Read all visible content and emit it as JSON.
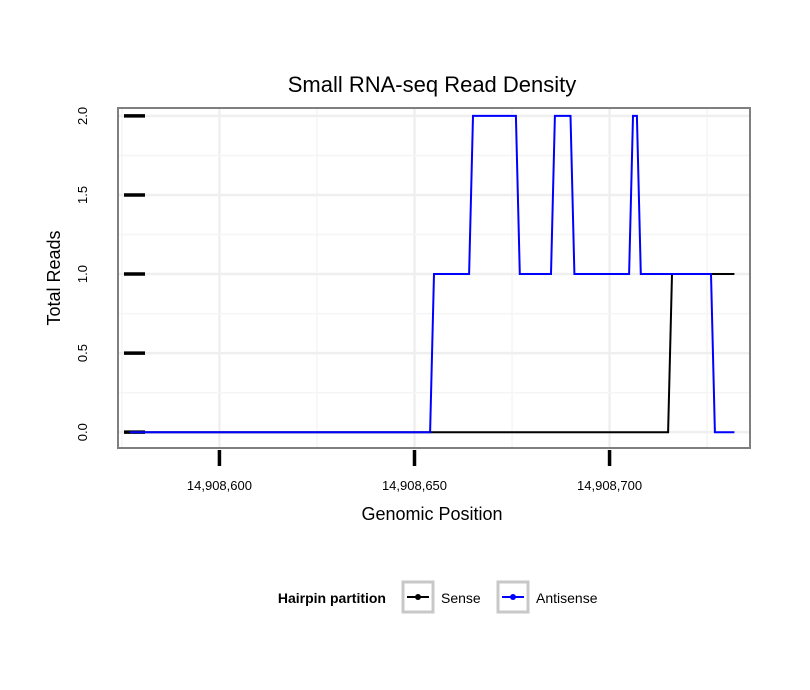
{
  "chart_data": {
    "type": "line",
    "title": "Small RNA-seq Read Density",
    "xlabel": "Genomic Position",
    "ylabel": "Total Reads",
    "xlim": [
      14908574,
      14908736
    ],
    "ylim": [
      -0.1,
      2.05
    ],
    "xticks": [
      {
        "value": 14908600,
        "label": "14,908,600"
      },
      {
        "value": 14908650,
        "label": "14,908,650"
      },
      {
        "value": 14908700,
        "label": "14,908,700"
      }
    ],
    "yticks": [
      {
        "value": 0,
        "label": "0.0"
      },
      {
        "value": 0.5,
        "label": "0.5"
      },
      {
        "value": 1,
        "label": "1.0"
      },
      {
        "value": 1.5,
        "label": "1.5"
      },
      {
        "value": 2,
        "label": "2.0"
      }
    ],
    "grid": true,
    "series": [
      {
        "name": "Sense",
        "color": "#000000",
        "x": [
          14908577,
          14908715,
          14908716,
          14908732
        ],
        "y": [
          0,
          0,
          1,
          1
        ]
      },
      {
        "name": "Antisense",
        "color": "#0000ff",
        "x": [
          14908577,
          14908654,
          14908655,
          14908664,
          14908665,
          14908676,
          14908677,
          14908685,
          14908686,
          14908690,
          14908691,
          14908705,
          14908706,
          14908707,
          14908708,
          14908726,
          14908727,
          14908732
        ],
        "y": [
          0,
          0,
          1,
          1,
          2,
          2,
          1,
          1,
          2,
          2,
          1,
          1,
          2,
          2,
          1,
          1,
          0,
          0
        ]
      }
    ],
    "legend": {
      "title": "Hairpin partition",
      "placement": "bottom",
      "entries": [
        "Sense",
        "Antisense"
      ]
    }
  }
}
